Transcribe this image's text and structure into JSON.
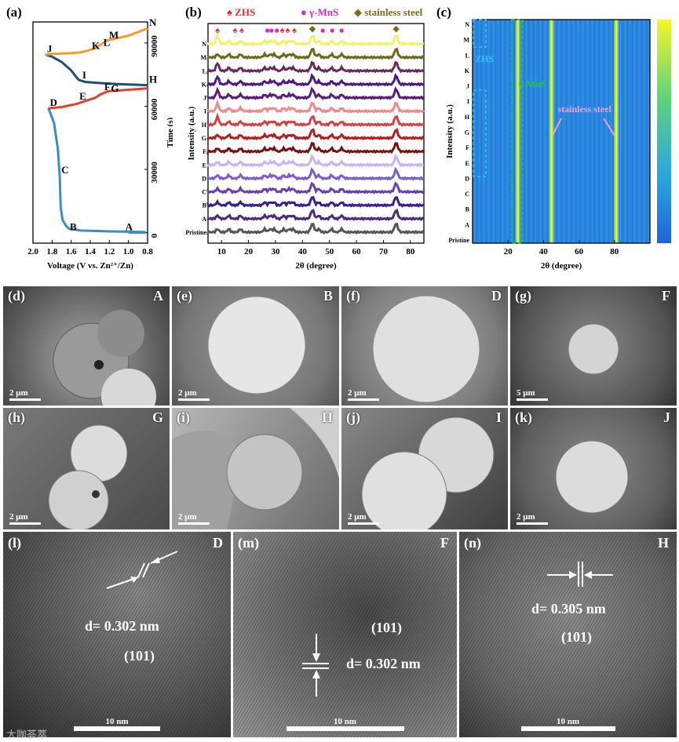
{
  "figure_labels": {
    "a": "(a)",
    "b": "(b)",
    "c": "(c)",
    "d": "(d)",
    "e": "(e)",
    "f": "(f)",
    "g": "(g)",
    "h": "(h)",
    "i": "(i)",
    "j": "(j)",
    "k": "(k)",
    "l": "(l)",
    "m": "(m)",
    "n": "(n)"
  },
  "chart_data": [
    {
      "type": "line",
      "panel": "(a)",
      "xlabel": "Voltage (V vs. Zn²⁺/Zn)",
      "ylabel": "Time (s)",
      "xticks": [
        "2.0",
        "1.8",
        "1.6",
        "1.4",
        "1.2",
        "1.0",
        "0.8"
      ],
      "yticks": [
        "0",
        "30000",
        "60000",
        "90000"
      ],
      "xlim": [
        2.0,
        0.8
      ],
      "ylim": [
        -5000,
        100000
      ],
      "point_labels": [
        "A",
        "B",
        "C",
        "D",
        "E",
        "F",
        "G",
        "H",
        "I",
        "J",
        "K",
        "L",
        "M",
        "N"
      ],
      "point_coords": {
        "A": [
          1.05,
          0
        ],
        "B": [
          1.63,
          0
        ],
        "C": [
          1.72,
          27000
        ],
        "D": [
          1.84,
          59000
        ],
        "E": [
          1.53,
          62000
        ],
        "F": [
          1.27,
          66500
        ],
        "G": [
          1.2,
          65800
        ],
        "H": [
          0.8,
          70000
        ],
        "I": [
          1.5,
          72000
        ],
        "J": [
          1.87,
          84500
        ],
        "K": [
          1.4,
          86000
        ],
        "L": [
          1.28,
          87500
        ],
        "M": [
          1.22,
          91000
        ],
        "N": [
          0.8,
          97000
        ]
      },
      "series": [
        {
          "color": "#3a8fbf",
          "x": [
            1.0,
            0.82,
            0.84,
            1.2,
            1.5,
            1.62,
            1.65,
            1.69,
            1.71,
            1.72,
            1.74,
            1.78,
            1.82,
            1.84
          ],
          "y": [
            0,
            0,
            300,
            600,
            1000,
            1800,
            3000,
            6000,
            12000,
            27000,
            40000,
            52000,
            57000,
            59000
          ]
        },
        {
          "color": "#e04030",
          "x": [
            1.84,
            1.8,
            1.7,
            1.55,
            1.45,
            1.35,
            1.3,
            1.25,
            1.2,
            1.0,
            0.8
          ],
          "y": [
            59000,
            59200,
            59600,
            61000,
            62500,
            64000,
            65500,
            66500,
            67200,
            67800,
            68500
          ]
        },
        {
          "color": "#1f4f7a",
          "x": [
            0.8,
            1.1,
            1.3,
            1.45,
            1.52,
            1.55,
            1.6,
            1.7,
            1.8,
            1.87
          ],
          "y": [
            70000,
            70500,
            71000,
            71500,
            72500,
            74000,
            77000,
            81000,
            83500,
            84500
          ]
        },
        {
          "color": "#f39c2a",
          "x": [
            1.87,
            1.8,
            1.6,
            1.5,
            1.42,
            1.35,
            1.3,
            1.25,
            1.2,
            1.1,
            1.0,
            0.8
          ],
          "y": [
            84500,
            84800,
            85200,
            85600,
            86500,
            87500,
            89000,
            90500,
            91500,
            92500,
            93500,
            97000
          ]
        }
      ]
    },
    {
      "type": "line",
      "panel": "(b)",
      "xlabel": "2θ (degree)",
      "ylabel": "Intensity (a.u.)",
      "xticks": [
        "10",
        "20",
        "30",
        "40",
        "50",
        "60",
        "70",
        "80"
      ],
      "xlim": [
        5,
        85
      ],
      "legend": [
        "ZHS",
        "γ-MnS",
        "stainless steel"
      ],
      "legend_colors": [
        "#e0312f",
        "#d629c9",
        "#7a6a1a"
      ],
      "trace_labels": [
        "Pristine",
        "A",
        "B",
        "C",
        "D",
        "E",
        "F",
        "G",
        "H",
        "I",
        "J",
        "K",
        "L",
        "M",
        "N"
      ],
      "trace_colors": [
        "#555555",
        "#4b2a7a",
        "#3b1f8a",
        "#6a3fb0",
        "#7a5bd0",
        "#c8b4f0",
        "#7a1010",
        "#b02020",
        "#d24040",
        "#f08a8a",
        "#5a1d7a",
        "#4a1a8a",
        "#6a2a5a",
        "#6a6a1a",
        "#f0f06a"
      ],
      "peaks_2theta": [
        8.5,
        12.7,
        17,
        26,
        28,
        29.5,
        33,
        35,
        36.5,
        43.7,
        46,
        50.8,
        54.5,
        74.7
      ],
      "zhs_marker_2theta": [
        8.5,
        15,
        17.5,
        32.5,
        34.5,
        37
      ],
      "mns_marker_2theta": [
        27,
        28.5,
        30.5,
        47.5,
        51,
        54.5
      ],
      "ss_marker_2theta": [
        43.7,
        74.7
      ]
    },
    {
      "type": "heatmap",
      "panel": "(c)",
      "xlabel": "2θ (degree)",
      "ylabel": "Intensity (a.u.)",
      "xticks": [
        "20",
        "40",
        "60",
        "80"
      ],
      "xlim": [
        0,
        100
      ],
      "yticks": [
        "Pristine",
        "A",
        "B",
        "C",
        "D",
        "E",
        "F",
        "G",
        "H",
        "I",
        "J",
        "K",
        "L",
        "M",
        "N"
      ],
      "annotations": [
        "ZHS",
        "γ-MnS",
        "stainless steel"
      ],
      "annotation_colors": [
        "#33c8ff",
        "#20d020",
        "#f0a0d0"
      ],
      "bright_lines_2theta": [
        25.5,
        44.5,
        81
      ],
      "background_color": "#2a86e0"
    }
  ],
  "sem_panels": [
    {
      "id": "d",
      "tag": "A",
      "scale": "2 μm"
    },
    {
      "id": "e",
      "tag": "B",
      "scale": "2 μm"
    },
    {
      "id": "f",
      "tag": "D",
      "scale": "2 μm"
    },
    {
      "id": "g",
      "tag": "F",
      "scale": "5 μm"
    },
    {
      "id": "h",
      "tag": "G",
      "scale": "2 μm"
    },
    {
      "id": "i",
      "tag": "H",
      "scale": "2 μm"
    },
    {
      "id": "j",
      "tag": "I",
      "scale": "2 μm"
    },
    {
      "id": "k",
      "tag": "J",
      "scale": "2 μm"
    }
  ],
  "tem_panels": [
    {
      "id": "l",
      "tag": "D",
      "d_text": "d= 0.302 nm",
      "plane": "(101)",
      "scale": "10 nm"
    },
    {
      "id": "m",
      "tag": "F",
      "d_text": "d= 0.302 nm",
      "plane": "(101)",
      "scale": "10 nm"
    },
    {
      "id": "n",
      "tag": "H",
      "d_text": "d= 0.305 nm",
      "plane": "(101)",
      "scale": "10 nm"
    }
  ],
  "watermark": "大咖荟萃"
}
